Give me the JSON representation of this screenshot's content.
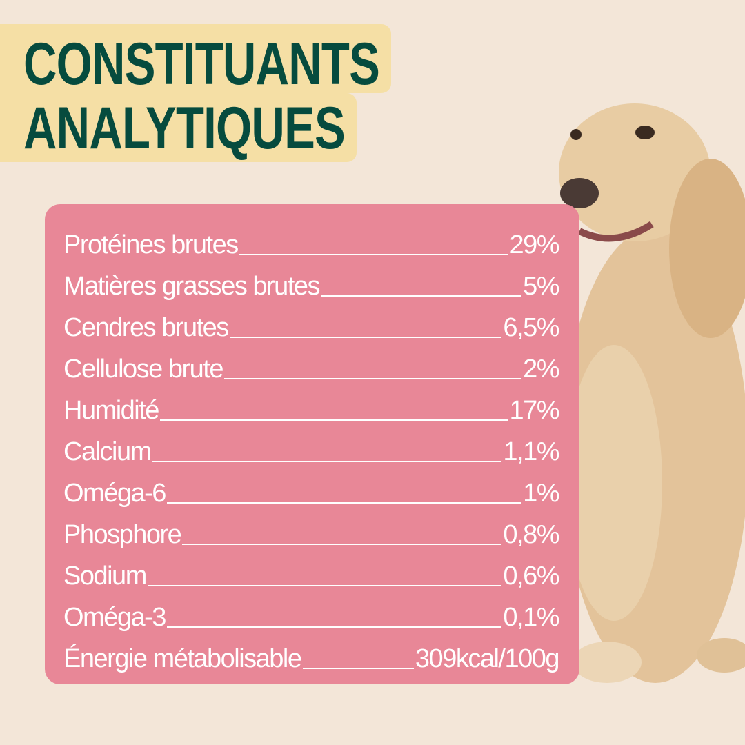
{
  "title": {
    "line1": "CONSTITUANTS",
    "line2": "ANALYTIQUES"
  },
  "colors": {
    "background": "#f3e6d8",
    "title_box": "#f5dfa5",
    "title_text": "#064b3e",
    "panel": "#e88797",
    "text": "#ffffff"
  },
  "image": {
    "subject": "dog-photo"
  },
  "rows": [
    {
      "label": "Protéines brutes",
      "value": "29%"
    },
    {
      "label": "Matières grasses brutes",
      "value": "5%"
    },
    {
      "label": "Cendres brutes",
      "value": "6,5%"
    },
    {
      "label": "Cellulose brute",
      "value": "2%"
    },
    {
      "label": "Humidité",
      "value": "17%"
    },
    {
      "label": "Calcium",
      "value": "1,1%"
    },
    {
      "label": "Oméga-6",
      "value": "1%"
    },
    {
      "label": "Phosphore",
      "value": "0,8%"
    },
    {
      "label": "Sodium",
      "value": "0,6%"
    },
    {
      "label": "Oméga-3",
      "value": "0,1%"
    },
    {
      "label": "Énergie métabolisable",
      "value": "309kcal/100g"
    }
  ]
}
